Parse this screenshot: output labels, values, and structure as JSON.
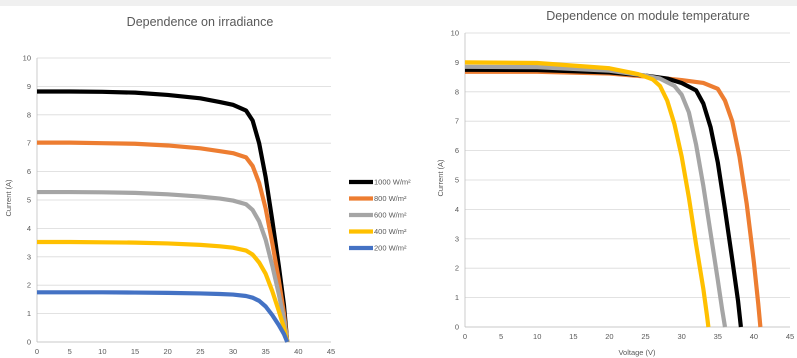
{
  "chart_data": [
    {
      "type": "line",
      "title": "Dependence on irradiance",
      "xlabel": "",
      "ylabel": "Current (A)",
      "xlim": [
        0,
        45
      ],
      "ylim": [
        0,
        10
      ],
      "xticks": [
        0,
        5,
        10,
        15,
        20,
        25,
        30,
        35,
        40,
        45
      ],
      "yticks": [
        0,
        1,
        2,
        3,
        4,
        5,
        6,
        7,
        8,
        9,
        10
      ],
      "grid": "horizontal",
      "legend": "right",
      "series": [
        {
          "name": "1000 W/m²",
          "color": "#000000",
          "points": [
            [
              0,
              8.82
            ],
            [
              5,
              8.82
            ],
            [
              10,
              8.81
            ],
            [
              15,
              8.78
            ],
            [
              20,
              8.7
            ],
            [
              25,
              8.58
            ],
            [
              28,
              8.45
            ],
            [
              30,
              8.35
            ],
            [
              32,
              8.15
            ],
            [
              33,
              7.8
            ],
            [
              34,
              7.0
            ],
            [
              35,
              5.8
            ],
            [
              36,
              4.3
            ],
            [
              37,
              2.7
            ],
            [
              37.8,
              1.3
            ],
            [
              38.3,
              0
            ]
          ]
        },
        {
          "name": "800 W/m²",
          "color": "#ed7d31",
          "points": [
            [
              0,
              7.02
            ],
            [
              5,
              7.02
            ],
            [
              10,
              7.0
            ],
            [
              15,
              6.98
            ],
            [
              20,
              6.92
            ],
            [
              25,
              6.82
            ],
            [
              28,
              6.72
            ],
            [
              30,
              6.65
            ],
            [
              32,
              6.5
            ],
            [
              33,
              6.2
            ],
            [
              34,
              5.6
            ],
            [
              35,
              4.7
            ],
            [
              36,
              3.5
            ],
            [
              37,
              2.2
            ],
            [
              37.8,
              1.0
            ],
            [
              38.3,
              0
            ]
          ]
        },
        {
          "name": "600 W/m²",
          "color": "#a5a5a5",
          "points": [
            [
              0,
              5.28
            ],
            [
              5,
              5.28
            ],
            [
              10,
              5.27
            ],
            [
              15,
              5.25
            ],
            [
              20,
              5.2
            ],
            [
              25,
              5.12
            ],
            [
              28,
              5.05
            ],
            [
              30,
              4.98
            ],
            [
              32,
              4.85
            ],
            [
              33,
              4.65
            ],
            [
              34,
              4.25
            ],
            [
              35,
              3.6
            ],
            [
              36,
              2.7
            ],
            [
              37,
              1.7
            ],
            [
              37.8,
              0.8
            ],
            [
              38.3,
              0
            ]
          ]
        },
        {
          "name": "400 W/m²",
          "color": "#ffc000",
          "points": [
            [
              0,
              3.52
            ],
            [
              5,
              3.52
            ],
            [
              10,
              3.51
            ],
            [
              15,
              3.5
            ],
            [
              20,
              3.47
            ],
            [
              25,
              3.42
            ],
            [
              28,
              3.37
            ],
            [
              30,
              3.32
            ],
            [
              32,
              3.22
            ],
            [
              33,
              3.08
            ],
            [
              34,
              2.8
            ],
            [
              35,
              2.4
            ],
            [
              36,
              1.8
            ],
            [
              37,
              1.1
            ],
            [
              37.8,
              0.5
            ],
            [
              38.3,
              0
            ]
          ]
        },
        {
          "name": "200 W/m²",
          "color": "#4472c4",
          "points": [
            [
              0,
              1.75
            ],
            [
              5,
              1.75
            ],
            [
              10,
              1.75
            ],
            [
              15,
              1.74
            ],
            [
              20,
              1.73
            ],
            [
              25,
              1.71
            ],
            [
              28,
              1.69
            ],
            [
              30,
              1.67
            ],
            [
              32,
              1.62
            ],
            [
              33,
              1.56
            ],
            [
              34,
              1.45
            ],
            [
              35,
              1.25
            ],
            [
              36,
              0.95
            ],
            [
              37,
              0.6
            ],
            [
              37.8,
              0.28
            ],
            [
              38.3,
              0
            ]
          ]
        }
      ]
    },
    {
      "type": "line",
      "title": "Dependence on module temperature",
      "xlabel": "Voltage (V)",
      "ylabel": "Current (A)",
      "xlim": [
        0,
        45
      ],
      "ylim": [
        0,
        10
      ],
      "xticks": [
        0,
        5,
        10,
        15,
        20,
        25,
        30,
        35,
        40,
        45
      ],
      "yticks": [
        0,
        1,
        2,
        3,
        4,
        5,
        6,
        7,
        8,
        9,
        10
      ],
      "grid": "horizontal",
      "legend": "none",
      "series": [
        {
          "name": "",
          "color": "#ed7d31",
          "points": [
            [
              0,
              8.68
            ],
            [
              10,
              8.68
            ],
            [
              20,
              8.62
            ],
            [
              25,
              8.52
            ],
            [
              30,
              8.4
            ],
            [
              33,
              8.3
            ],
            [
              35,
              8.1
            ],
            [
              36,
              7.7
            ],
            [
              37,
              7.0
            ],
            [
              38,
              5.8
            ],
            [
              39,
              4.2
            ],
            [
              40,
              2.2
            ],
            [
              40.6,
              0.8
            ],
            [
              40.9,
              0
            ]
          ]
        },
        {
          "name": "",
          "color": "#000000",
          "points": [
            [
              0,
              8.75
            ],
            [
              10,
              8.74
            ],
            [
              20,
              8.66
            ],
            [
              25,
              8.55
            ],
            [
              28,
              8.45
            ],
            [
              30,
              8.3
            ],
            [
              32,
              8.05
            ],
            [
              33,
              7.6
            ],
            [
              34,
              6.8
            ],
            [
              35,
              5.6
            ],
            [
              36,
              4.0
            ],
            [
              37,
              2.3
            ],
            [
              37.8,
              0.9
            ],
            [
              38.2,
              0
            ]
          ]
        },
        {
          "name": "",
          "color": "#a5a5a5",
          "points": [
            [
              0,
              8.85
            ],
            [
              10,
              8.84
            ],
            [
              20,
              8.72
            ],
            [
              25,
              8.55
            ],
            [
              27,
              8.45
            ],
            [
              29,
              8.2
            ],
            [
              30,
              7.9
            ],
            [
              31,
              7.3
            ],
            [
              32,
              6.2
            ],
            [
              33,
              4.8
            ],
            [
              34,
              3.2
            ],
            [
              35,
              1.6
            ],
            [
              35.6,
              0.6
            ],
            [
              36,
              0
            ]
          ]
        },
        {
          "name": "",
          "color": "#ffc000",
          "points": [
            [
              0,
              9.0
            ],
            [
              10,
              8.98
            ],
            [
              20,
              8.8
            ],
            [
              24,
              8.6
            ],
            [
              26,
              8.42
            ],
            [
              27,
              8.2
            ],
            [
              28,
              7.7
            ],
            [
              29,
              6.9
            ],
            [
              30,
              5.8
            ],
            [
              31,
              4.4
            ],
            [
              32,
              2.8
            ],
            [
              33,
              1.3
            ],
            [
              33.5,
              0.4
            ],
            [
              33.7,
              0
            ]
          ]
        }
      ]
    }
  ]
}
